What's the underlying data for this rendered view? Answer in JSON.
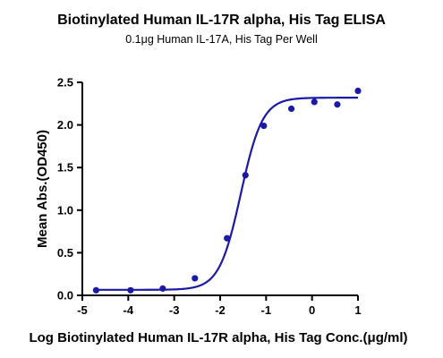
{
  "chart_data": {
    "type": "scatter",
    "title": "Biotinylated Human IL-17R alpha, His Tag ELISA",
    "subtitle": "0.1μg Human IL-17A, His Tag Per Well",
    "xlabel": "Log Biotinylated Human IL-17R alpha, His Tag Conc.(μg/ml)",
    "ylabel": "Mean Abs.(OD450)",
    "xlim": [
      -5,
      1
    ],
    "ylim": [
      0,
      2.5
    ],
    "xticks": [
      "-5",
      "-4",
      "-3",
      "-2",
      "-1",
      "0",
      "1"
    ],
    "yticks": [
      "0.0",
      "0.5",
      "1.0",
      "1.5",
      "2.0",
      "2.5"
    ],
    "grid": false,
    "series": [
      {
        "color": "#1a1aa6",
        "points": [
          {
            "x": -4.7,
            "y": 0.06
          },
          {
            "x": -3.95,
            "y": 0.06
          },
          {
            "x": -3.25,
            "y": 0.08
          },
          {
            "x": -2.55,
            "y": 0.2
          },
          {
            "x": -1.85,
            "y": 0.67
          },
          {
            "x": -1.45,
            "y": 1.41
          },
          {
            "x": -1.05,
            "y": 1.99
          },
          {
            "x": -0.45,
            "y": 2.19
          },
          {
            "x": 0.05,
            "y": 2.27
          },
          {
            "x": 0.55,
            "y": 2.24
          },
          {
            "x": 1.0,
            "y": 2.4
          }
        ],
        "fit": {
          "model": "4PL",
          "bottom": 0.065,
          "top": 2.32,
          "logEC50": -1.55,
          "hill": 1.85
        }
      }
    ]
  }
}
